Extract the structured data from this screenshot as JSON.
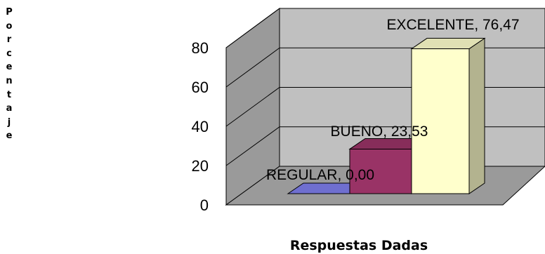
{
  "chart_data": {
    "type": "bar",
    "xlabel": "Respuestas  Dadas",
    "ylabel": "Porcentaje",
    "ylim": [
      0,
      80
    ],
    "yticks": [
      0,
      20,
      40,
      60,
      80
    ],
    "categories": [
      "REGULAR",
      "BUENO",
      "EXCELENTE"
    ],
    "values": [
      0.0,
      23.53,
      76.47
    ],
    "data_labels": [
      "REGULAR, 0,00",
      "BUENO, 23,53",
      "EXCELENTE, 76,47"
    ],
    "colors": [
      "#6f6fd0",
      "#993366",
      "#ffffcc"
    ],
    "grid": true,
    "legend": "none",
    "three_d": true
  }
}
